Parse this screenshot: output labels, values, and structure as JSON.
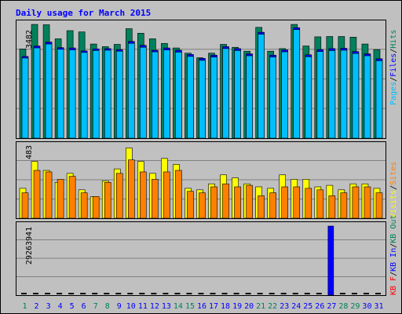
{
  "chart_data": [
    {
      "panel": "pages-files-hits",
      "type": "bar",
      "title": "Daily usage for March 2015",
      "categories": [
        "1",
        "2",
        "3",
        "4",
        "5",
        "6",
        "7",
        "8",
        "9",
        "10",
        "11",
        "12",
        "13",
        "14",
        "15",
        "16",
        "17",
        "18",
        "19",
        "20",
        "21",
        "22",
        "23",
        "24",
        "25",
        "26",
        "27",
        "28",
        "29",
        "30",
        "31"
      ],
      "weekend_days": [
        "1",
        "7",
        "8",
        "14",
        "15",
        "21",
        "22",
        "28",
        "29"
      ],
      "ymax_label": "3482",
      "ylim": [
        0,
        3482
      ],
      "series": [
        {
          "name": "Hits",
          "color": "#00805c",
          "values": [
            2730,
            3480,
            3470,
            3040,
            3290,
            3250,
            2880,
            2800,
            2870,
            3350,
            3210,
            3040,
            2900,
            2760,
            2600,
            2460,
            2600,
            2870,
            2780,
            2660,
            3390,
            2660,
            2740,
            3480,
            2820,
            3100,
            3110,
            3110,
            3090,
            2880,
            2710
          ]
        },
        {
          "name": "Files",
          "color": "#0000ff",
          "values": [
            2500,
            2820,
            2940,
            2770,
            2760,
            2670,
            2730,
            2740,
            2710,
            2960,
            2840,
            2690,
            2760,
            2690,
            2560,
            2440,
            2540,
            2800,
            2740,
            2580,
            3240,
            2540,
            2700,
            3380,
            2550,
            2710,
            2740,
            2750,
            2650,
            2580,
            2430
          ]
        },
        {
          "name": "Pages",
          "color": "#00bfff",
          "values": [
            2450,
            2760,
            2880,
            2720,
            2700,
            2620,
            2680,
            2690,
            2660,
            2900,
            2780,
            2640,
            2700,
            2630,
            2500,
            2380,
            2480,
            2740,
            2680,
            2520,
            3180,
            2480,
            2640,
            3320,
            2490,
            2650,
            2680,
            2690,
            2590,
            2520,
            2370
          ]
        }
      ]
    },
    {
      "panel": "visits-sites",
      "type": "bar",
      "ymax_label": "483",
      "ylim": [
        0,
        483
      ],
      "series": [
        {
          "name": "Visits",
          "color": "#ffff00",
          "values": [
            200,
            380,
            320,
            240,
            300,
            190,
            145,
            250,
            330,
            470,
            380,
            300,
            400,
            360,
            200,
            190,
            230,
            290,
            270,
            230,
            210,
            200,
            290,
            260,
            260,
            210,
            220,
            190,
            230,
            230,
            200
          ]
        },
        {
          "name": "Sites",
          "color": "#ff8000",
          "values": [
            170,
            320,
            310,
            260,
            280,
            170,
            145,
            240,
            300,
            390,
            310,
            260,
            310,
            320,
            180,
            170,
            210,
            230,
            210,
            220,
            150,
            170,
            210,
            210,
            200,
            190,
            150,
            170,
            210,
            210,
            170
          ]
        }
      ]
    },
    {
      "panel": "kbin-kbout-kbf",
      "type": "bar",
      "ymax_label": "29263941",
      "ylim": [
        0,
        29263941
      ],
      "series": [
        {
          "name": "KB In",
          "color": "#0000ff",
          "values": [
            0,
            0,
            0,
            0,
            0,
            0,
            0,
            0,
            0,
            0,
            0,
            0,
            0,
            0,
            0,
            0,
            0,
            0,
            0,
            0,
            0,
            0,
            0,
            0,
            0,
            0,
            29263941,
            0,
            0,
            0,
            0
          ]
        },
        {
          "name": "KB Out",
          "color": "#00805c",
          "values": []
        },
        {
          "name": "KB F",
          "color": "#ff0000",
          "values": []
        }
      ]
    }
  ],
  "legend": {
    "right_top": [
      {
        "text": "Pages",
        "color": "#00bfff"
      },
      {
        "text": "/",
        "color": "#000000"
      },
      {
        "text": "Files",
        "color": "#0000ff"
      },
      {
        "text": "/",
        "color": "#000000"
      },
      {
        "text": "Hits",
        "color": "#00805c"
      }
    ],
    "right_mid": [
      {
        "text": "Visits",
        "color": "#ffff00"
      },
      {
        "text": "/",
        "color": "#000000"
      },
      {
        "text": "Sites",
        "color": "#ff8000"
      }
    ],
    "right_bottom": [
      {
        "text": "KB F",
        "color": "#ff0000"
      },
      {
        "text": "/",
        "color": "#000000"
      },
      {
        "text": "KB In",
        "color": "#0000ff"
      },
      {
        "text": "/",
        "color": "#000000"
      },
      {
        "text": "KB Out",
        "color": "#00805c"
      }
    ]
  },
  "colors": {
    "background": "#c0c0c0",
    "title": "#0000ff",
    "weekday_label": "#0000ff",
    "weekend_label": "#00805c"
  }
}
